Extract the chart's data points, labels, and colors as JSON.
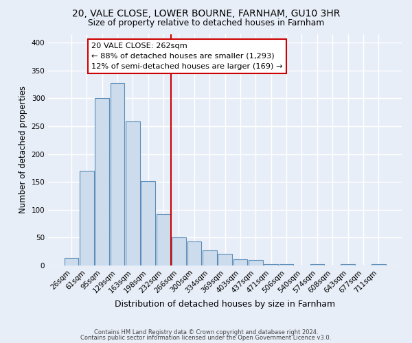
{
  "title1": "20, VALE CLOSE, LOWER BOURNE, FARNHAM, GU10 3HR",
  "title2": "Size of property relative to detached houses in Farnham",
  "xlabel": "Distribution of detached houses by size in Farnham",
  "ylabel": "Number of detached properties",
  "bar_labels": [
    "26sqm",
    "61sqm",
    "95sqm",
    "129sqm",
    "163sqm",
    "198sqm",
    "232sqm",
    "266sqm",
    "300sqm",
    "334sqm",
    "369sqm",
    "403sqm",
    "437sqm",
    "471sqm",
    "506sqm",
    "540sqm",
    "574sqm",
    "608sqm",
    "643sqm",
    "677sqm",
    "711sqm"
  ],
  "bar_heights": [
    13,
    170,
    300,
    327,
    259,
    152,
    92,
    50,
    43,
    27,
    21,
    11,
    10,
    2,
    3,
    0,
    2,
    0,
    2,
    0,
    2
  ],
  "bar_color": "#ccdcec",
  "bar_edge_color": "#5b8db8",
  "vline_color": "#cc0000",
  "vline_position": 7.5,
  "annotation_line1": "20 VALE CLOSE: 262sqm",
  "annotation_line2": "← 88% of detached houses are smaller (1,293)",
  "annotation_line3": "12% of semi-detached houses are larger (169) →",
  "ylim": [
    0,
    415
  ],
  "yticks": [
    0,
    50,
    100,
    150,
    200,
    250,
    300,
    350,
    400
  ],
  "footer1": "Contains HM Land Registry data © Crown copyright and database right 2024.",
  "footer2": "Contains public sector information licensed under the Open Government Licence v3.0.",
  "bg_color": "#e8eef8",
  "plot_bg_color": "#e8eef8"
}
